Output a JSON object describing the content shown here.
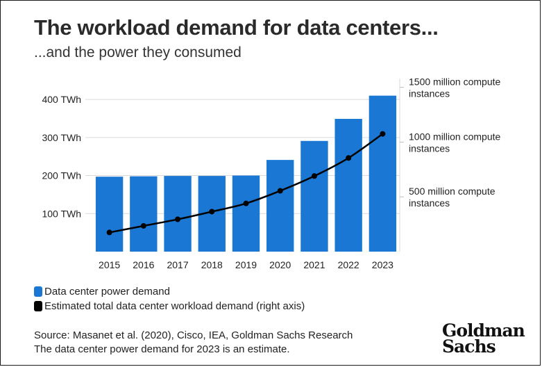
{
  "header": {
    "title": "The workload demand for data centers...",
    "subtitle": "...and the power they consumed"
  },
  "chart_data": {
    "type": "bar",
    "categories": [
      "2015",
      "2016",
      "2017",
      "2018",
      "2019",
      "2020",
      "2021",
      "2022",
      "2023"
    ],
    "series": [
      {
        "name": "Data center power demand",
        "type": "bar",
        "axis": "left",
        "color": "#1a78d4",
        "values": [
          197,
          198,
          199,
          199,
          200,
          241,
          291,
          349,
          410
        ]
      },
      {
        "name": "Estimated total data center workload demand (right axis)",
        "type": "line",
        "axis": "right",
        "color": "#000000",
        "values": [
          175,
          235,
          295,
          365,
          440,
          555,
          690,
          855,
          1075
        ]
      }
    ],
    "left_axis": {
      "ticks": [
        100,
        200,
        300,
        400
      ],
      "tick_labels": [
        "100 TWh",
        "200 TWh",
        "300 TWh",
        "400 TWh"
      ],
      "ylim": [
        0,
        455
      ]
    },
    "right_axis": {
      "ticks": [
        500,
        1000,
        1500
      ],
      "tick_labels": [
        [
          "500 million compute",
          "instances"
        ],
        [
          "1000 million compute",
          "instances"
        ],
        [
          "1500 million compute",
          "instances"
        ]
      ],
      "ylim": [
        0,
        1580
      ]
    },
    "grid": "horizontal",
    "legend": "bottom"
  },
  "legend": [
    {
      "label": "Data center power demand",
      "color": "#1a78d4"
    },
    {
      "label": "Estimated total data center workload demand (right axis)",
      "color": "#000000"
    }
  ],
  "footer": {
    "source": "Source: Masanet et al. (2020), Cisco, IEA, Goldman Sachs Research",
    "note": "The data center power demand for 2023 is an estimate."
  },
  "logo": {
    "line1": "Goldman",
    "line2": "Sachs"
  }
}
